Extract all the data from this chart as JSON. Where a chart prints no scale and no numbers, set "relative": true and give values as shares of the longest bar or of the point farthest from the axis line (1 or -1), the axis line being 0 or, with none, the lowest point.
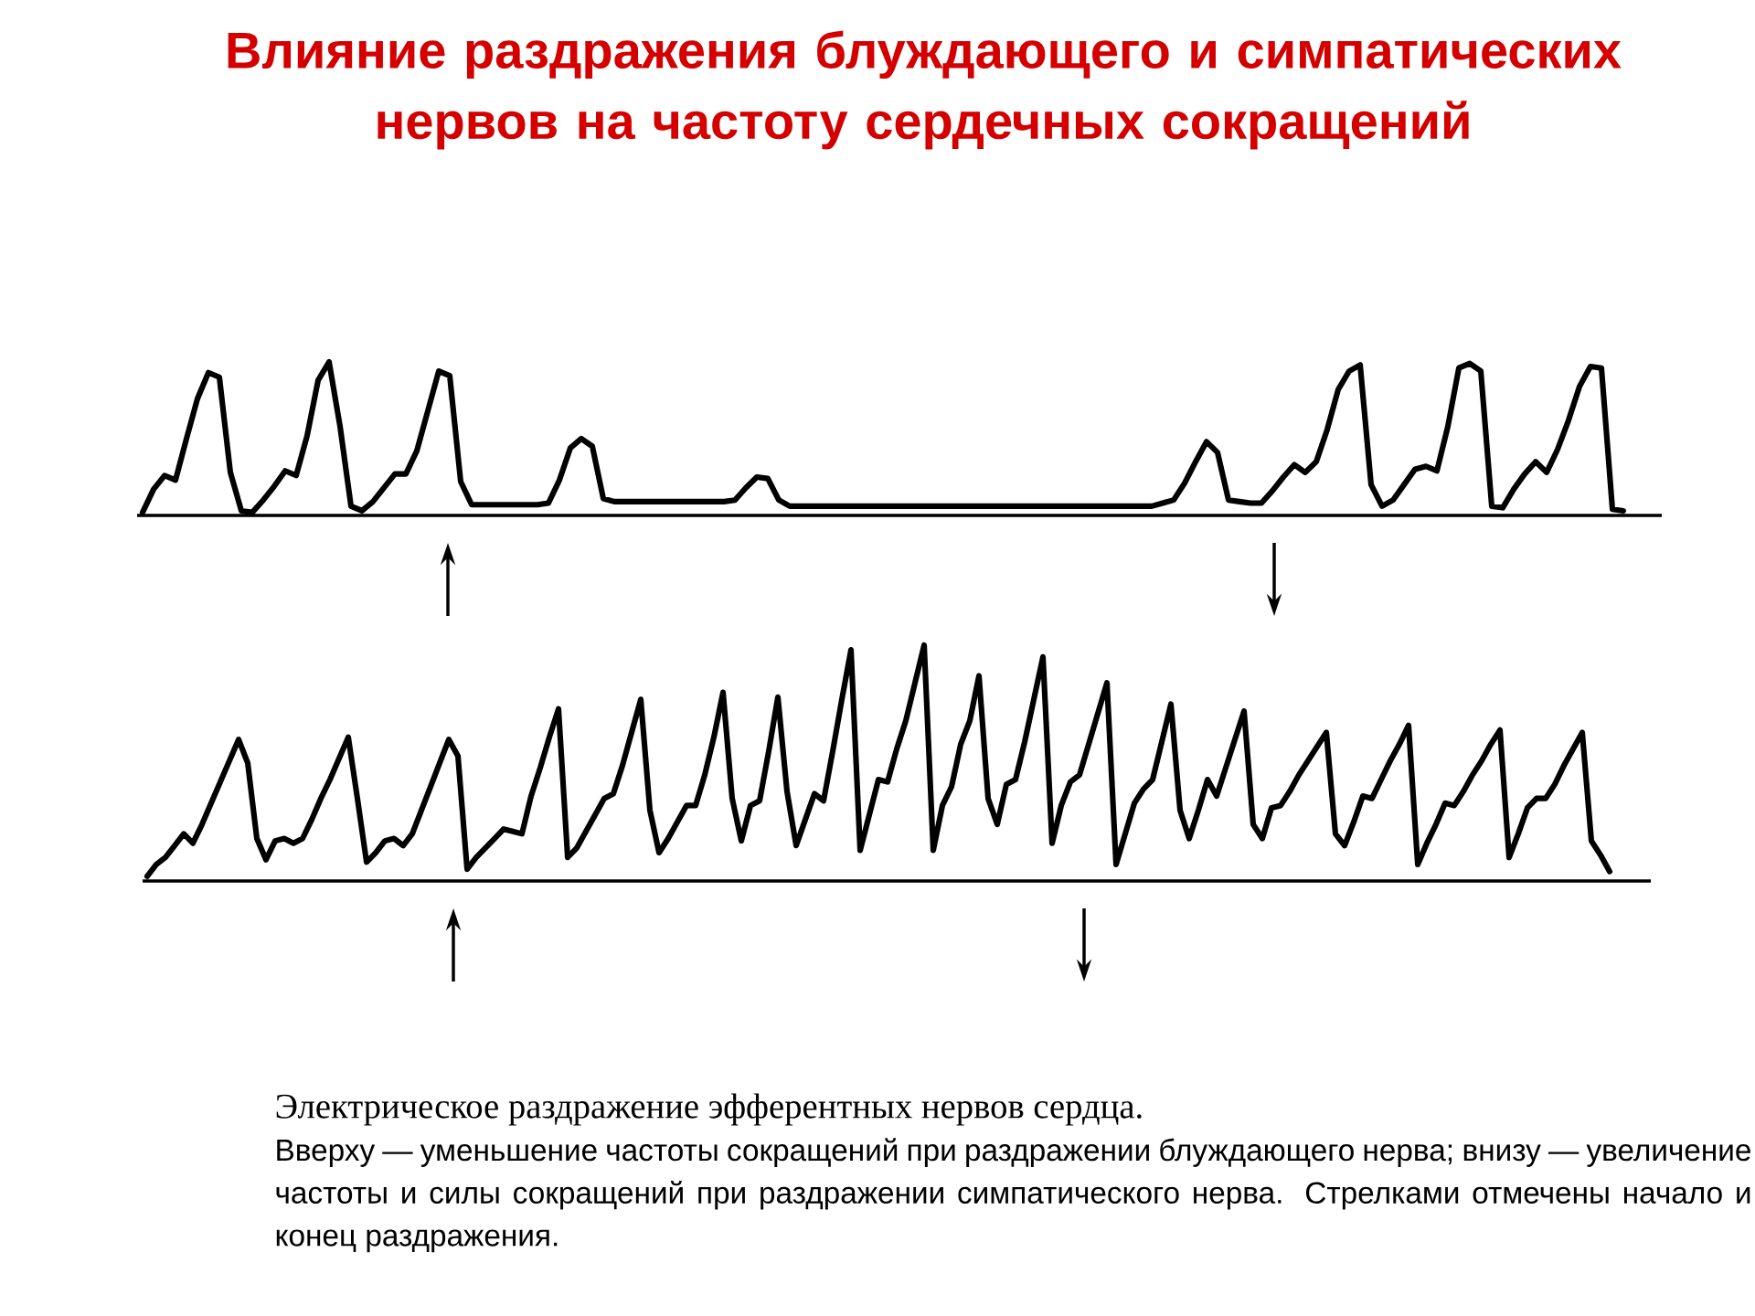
{
  "chart_data": [
    {
      "type": "line",
      "relative": true,
      "title": "Влияние раздражения блуждающего и симпатических нервов на частоту сердечных сокращений",
      "categories": [
        null,
        null,
        null,
        null,
        null,
        null,
        null,
        null,
        null,
        null,
        null,
        null,
        null,
        null,
        null,
        null,
        null,
        null,
        null,
        null,
        null,
        null,
        null,
        null,
        null,
        null,
        null,
        null,
        null,
        null,
        null,
        null,
        null,
        null,
        null,
        null,
        null,
        null,
        null,
        null,
        null,
        null,
        null,
        null,
        null,
        null,
        null,
        null,
        null,
        null,
        null,
        null,
        null,
        null,
        null,
        null,
        null,
        null,
        null,
        null,
        null,
        null,
        null,
        null,
        null,
        null,
        null,
        null,
        null,
        null,
        null,
        null,
        null,
        null,
        null,
        null,
        null,
        null,
        null,
        null,
        null,
        null,
        null,
        null,
        null,
        null,
        null,
        null,
        null,
        null,
        null,
        null,
        null,
        null,
        null,
        null,
        null,
        null,
        null,
        null,
        null,
        null,
        null,
        null,
        null,
        null,
        null,
        null,
        null,
        null,
        null,
        null,
        null,
        null,
        null,
        null,
        null,
        null,
        null,
        null,
        null,
        null,
        null,
        null,
        null,
        null,
        null,
        null,
        null,
        null,
        null,
        null,
        null,
        null,
        null,
        null,
        null,
        null,
        null
      ],
      "series": [
        {
          "color": "#000000",
          "values": [
            0.02,
            0.17,
            0.26,
            0.23,
            0.5,
            0.76,
            0.93,
            0.9,
            0.28,
            0.03,
            0.02,
            0.1,
            0.19,
            0.29,
            0.26,
            0.52,
            0.88,
            1.0,
            0.58,
            0.06,
            0.03,
            0.09,
            0.18,
            0.27,
            0.27,
            0.42,
            0.68,
            0.94,
            0.91,
            0.22,
            0.07,
            0.07,
            0.07,
            0.07,
            0.07,
            0.07,
            0.07,
            0.08,
            0.23,
            0.44,
            0.5,
            0.45,
            0.11,
            0.09,
            0.09,
            0.09,
            0.09,
            0.09,
            0.09,
            0.09,
            0.09,
            0.09,
            0.09,
            0.09,
            0.1,
            0.18,
            0.25,
            0.24,
            0.1,
            0.06,
            0.06,
            0.06,
            0.06,
            0.06,
            0.06,
            0.06,
            0.06,
            0.06,
            0.06,
            0.06,
            0.06,
            0.06,
            0.06,
            0.06,
            0.06,
            0.06,
            0.06,
            0.06,
            0.06,
            0.06,
            0.06,
            0.06,
            0.06,
            0.06,
            0.06,
            0.06,
            0.06,
            0.06,
            0.06,
            0.06,
            0.06,
            0.06,
            0.06,
            0.08,
            0.1,
            0.21,
            0.35,
            0.48,
            0.41,
            0.1,
            0.09,
            0.08,
            0.08,
            0.16,
            0.25,
            0.33,
            0.28,
            0.35,
            0.56,
            0.82,
            0.94,
            0.98,
            0.2,
            0.06,
            0.1,
            0.2,
            0.3,
            0.32,
            0.29,
            0.58,
            0.96,
            0.99,
            0.94,
            0.06,
            0.05,
            0.17,
            0.27,
            0.35,
            0.28,
            0.43,
            0.62,
            0.84,
            0.97,
            0.96,
            0.04,
            0.03,
            null,
            null,
            null
          ]
        }
      ]
    },
    {
      "type": "line",
      "relative": true,
      "categories": [
        null,
        null,
        null,
        null,
        null,
        null,
        null,
        null,
        null,
        null,
        null,
        null,
        null,
        null,
        null,
        null,
        null,
        null,
        null,
        null,
        null,
        null,
        null,
        null,
        null,
        null,
        null,
        null,
        null,
        null,
        null,
        null,
        null,
        null,
        null,
        null,
        null,
        null,
        null,
        null,
        null,
        null,
        null,
        null,
        null,
        null,
        null,
        null,
        null,
        null,
        null,
        null,
        null,
        null,
        null,
        null,
        null,
        null,
        null,
        null,
        null,
        null,
        null,
        null,
        null,
        null,
        null,
        null,
        null,
        null,
        null,
        null,
        null,
        null,
        null,
        null,
        null,
        null,
        null,
        null,
        null,
        null,
        null,
        null,
        null,
        null,
        null,
        null,
        null,
        null,
        null,
        null,
        null,
        null,
        null,
        null,
        null,
        null,
        null,
        null,
        null,
        null,
        null,
        null,
        null,
        null,
        null,
        null,
        null,
        null,
        null,
        null,
        null,
        null,
        null,
        null,
        null,
        null,
        null,
        null,
        null,
        null,
        null,
        null,
        null,
        null,
        null,
        null,
        null,
        null,
        null,
        null,
        null,
        null,
        null,
        null,
        null,
        null,
        null,
        null,
        null,
        null,
        null,
        null,
        null,
        null,
        null,
        null,
        null,
        null,
        null,
        null,
        null,
        null,
        null,
        null,
        null,
        null,
        null,
        null,
        null,
        null,
        null,
        null,
        null
      ],
      "series": [
        {
          "color": "#000000",
          "values": [
            0.02,
            0.07,
            0.1,
            0.15,
            0.2,
            0.16,
            0.24,
            0.33,
            0.42,
            0.51,
            0.6,
            0.5,
            0.18,
            0.09,
            0.17,
            0.18,
            0.16,
            0.18,
            0.26,
            0.35,
            0.43,
            0.52,
            0.61,
            0.35,
            0.08,
            0.12,
            0.17,
            0.18,
            0.15,
            0.2,
            0.3,
            0.4,
            0.5,
            0.6,
            0.53,
            0.05,
            0.1,
            0.14,
            0.18,
            0.22,
            0.21,
            0.2,
            0.36,
            0.48,
            0.61,
            0.73,
            0.1,
            0.14,
            0.21,
            0.28,
            0.35,
            0.37,
            0.49,
            0.63,
            0.77,
            0.3,
            0.12,
            0.18,
            0.25,
            0.32,
            0.32,
            0.45,
            0.61,
            0.8,
            0.35,
            0.17,
            0.32,
            0.34,
            0.55,
            0.78,
            0.38,
            0.15,
            0.26,
            0.37,
            0.34,
            0.55,
            0.77,
            0.98,
            0.13,
            0.28,
            0.43,
            0.42,
            0.56,
            0.68,
            0.84,
            1.0,
            0.13,
            0.32,
            0.4,
            0.58,
            0.68,
            0.87,
            0.35,
            0.24,
            0.41,
            0.43,
            0.59,
            0.77,
            0.95,
            0.16,
            0.32,
            0.42,
            0.45,
            0.58,
            0.71,
            0.84,
            0.07,
            0.2,
            0.33,
            0.39,
            0.43,
            0.59,
            0.75,
            0.3,
            0.18,
            0.3,
            0.43,
            0.36,
            0.48,
            0.6,
            0.72,
            0.24,
            0.18,
            0.31,
            0.32,
            0.38,
            0.45,
            0.51,
            0.57,
            0.63,
            0.2,
            0.15,
            0.25,
            0.36,
            0.35,
            0.43,
            0.51,
            0.58,
            0.66,
            0.07,
            0.16,
            0.24,
            0.33,
            0.32,
            0.38,
            0.45,
            0.51,
            0.58,
            0.64,
            0.1,
            0.2,
            0.31,
            0.35,
            0.35,
            0.41,
            0.49,
            0.56,
            0.63,
            0.17,
            0.11,
            0.04,
            null,
            null,
            null,
            null
          ]
        }
      ],
      "annotations": [
        "Электрическое раздражение эфферентных нервов сердца.",
        "Вверху — уменьшение частоты сокращений при раздражении блуждающего нерва; внизу — увеличение частоты и силы сокращений при раздражении симпатического нерва. Стрелками отмечены начало и конец раздражения."
      ]
    }
  ]
}
